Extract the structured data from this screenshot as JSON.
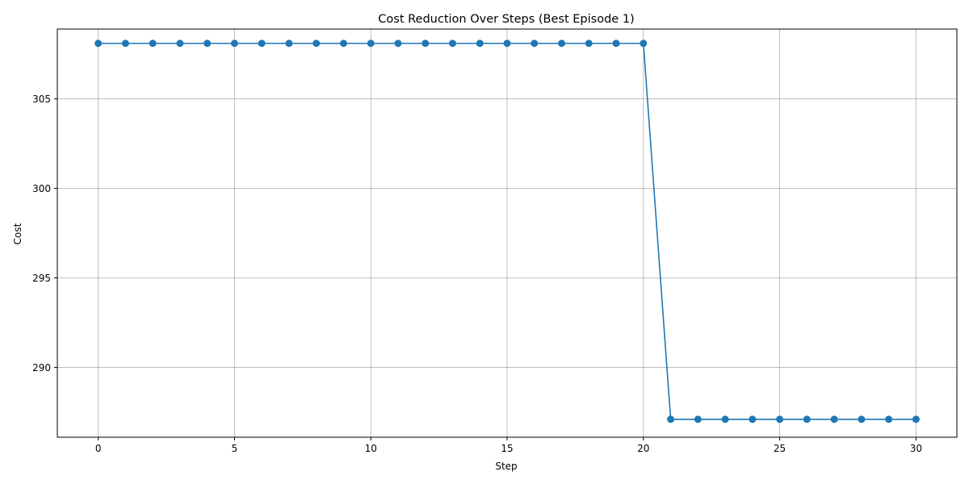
{
  "chart_data": {
    "type": "line",
    "title": "Cost Reduction Over Steps (Best Episode 1)",
    "xlabel": "Step",
    "ylabel": "Cost",
    "xlim": [
      -1.5,
      31.5
    ],
    "ylim": [
      286.1,
      308.9
    ],
    "xticks": [
      0,
      5,
      10,
      15,
      20,
      25,
      30
    ],
    "yticks": [
      290,
      295,
      300,
      305
    ],
    "grid": true,
    "marker": "circle",
    "series": [
      {
        "color": "#1f77b4",
        "x": [
          0,
          1,
          2,
          3,
          4,
          5,
          6,
          7,
          8,
          9,
          10,
          11,
          12,
          13,
          14,
          15,
          16,
          17,
          18,
          19,
          20,
          21,
          22,
          23,
          24,
          25,
          26,
          27,
          28,
          29,
          30
        ],
        "y": [
          308.1,
          308.1,
          308.1,
          308.1,
          308.1,
          308.1,
          308.1,
          308.1,
          308.1,
          308.1,
          308.1,
          308.1,
          308.1,
          308.1,
          308.1,
          308.1,
          308.1,
          308.1,
          308.1,
          308.1,
          308.1,
          287.1,
          287.1,
          287.1,
          287.1,
          287.1,
          287.1,
          287.1,
          287.1,
          287.1,
          287.1
        ]
      }
    ]
  }
}
